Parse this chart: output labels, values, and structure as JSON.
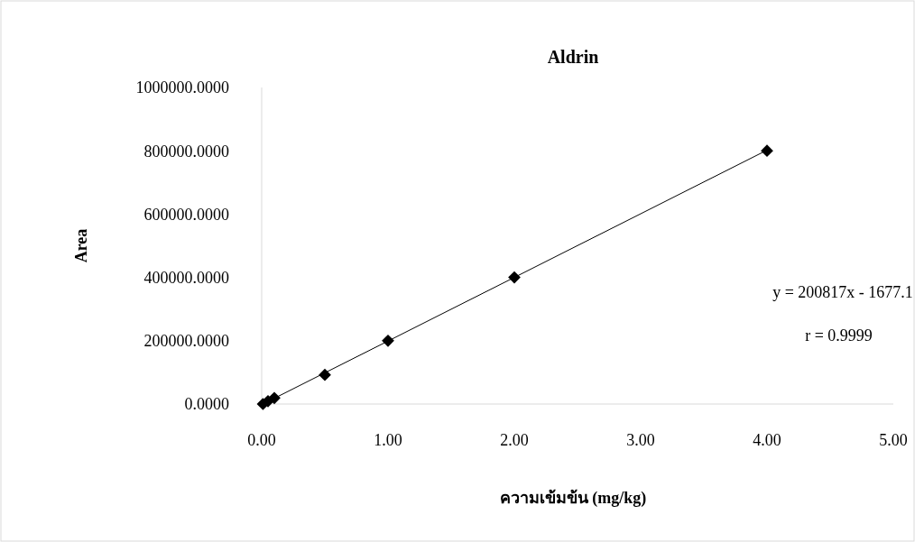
{
  "chart_data": {
    "type": "scatter",
    "title": "Aldrin",
    "xlabel": "ความเข้มข้น (mg/kg)",
    "ylabel": "Area",
    "xlim": [
      0,
      5
    ],
    "xticks": [
      {
        "value": 0,
        "label": "0.00"
      },
      {
        "value": 1,
        "label": "1.00"
      },
      {
        "value": 2,
        "label": "2.00"
      },
      {
        "value": 3,
        "label": "3.00"
      },
      {
        "value": 4,
        "label": "4.00"
      },
      {
        "value": 5,
        "label": "5.00"
      }
    ],
    "ylim": [
      0,
      1000000
    ],
    "yticks": [
      {
        "value": 0,
        "label": "0.0000"
      },
      {
        "value": 200000,
        "label": "200000.0000"
      },
      {
        "value": 400000,
        "label": "400000.0000"
      },
      {
        "value": 600000,
        "label": "600000.0000"
      },
      {
        "value": 800000,
        "label": "800000.0000"
      },
      {
        "value": 1000000,
        "label": "1000000.0000"
      }
    ],
    "grid": false,
    "series": [
      {
        "marker": "diamond",
        "color": "#000000",
        "x": [
          0.01,
          0.05,
          0.1,
          0.5,
          1,
          2,
          4
        ],
        "values": [
          0,
          9000,
          19000,
          92000,
          200000,
          400000,
          800000
        ]
      },
      {
        "type": "line",
        "color": "#000000",
        "x": [
          0.01,
          4
        ],
        "values": [
          0,
          802000
        ]
      }
    ],
    "annotations": [
      "y = 200817x - 1677.1",
      "r = 0.9999"
    ]
  }
}
